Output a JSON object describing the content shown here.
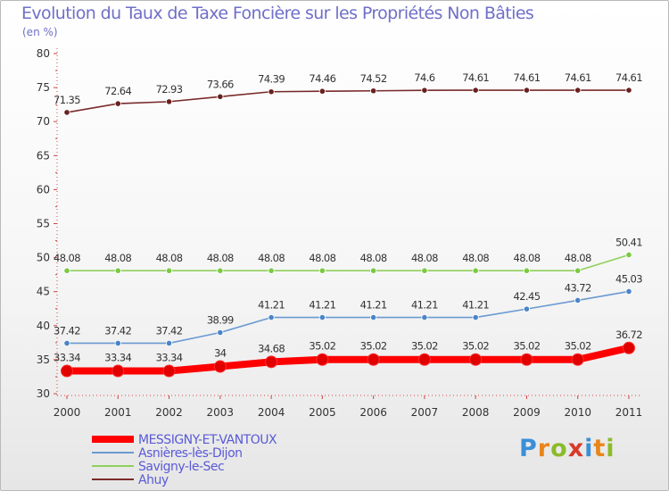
{
  "title": "Evolution du Taux de Taxe Foncière sur les Propriétés Non Bâties",
  "subtitle": "(en %)",
  "logo": {
    "letters": [
      "P",
      "r",
      "o",
      "x",
      "i",
      "t",
      "i"
    ],
    "colors": [
      "#3a8fd8",
      "#e8861a",
      "#8cbb2a",
      "#d83a2a",
      "#3a8fd8",
      "#e8861a",
      "#8cbb2a"
    ]
  },
  "chart_data": {
    "type": "line",
    "title": "Evolution du Taux de Taxe Foncière sur les Propriétés Non Bâties",
    "ylabel": "(en %)",
    "xlabel": "",
    "x": [
      "2000",
      "2001",
      "2002",
      "2003",
      "2004",
      "2005",
      "2006",
      "2007",
      "2008",
      "2009",
      "2010",
      "2011"
    ],
    "ylim": [
      30,
      80
    ],
    "yticks": [
      30,
      35,
      40,
      45,
      50,
      55,
      60,
      65,
      70,
      75,
      80
    ],
    "grid": false,
    "legend_position": "bottom-left",
    "series": [
      {
        "name": "Ahuy",
        "color": "#7a2a2a",
        "marker": "#6a1f1f",
        "values": [
          71.35,
          72.64,
          72.93,
          73.66,
          74.39,
          74.46,
          74.52,
          74.6,
          74.61,
          74.61,
          74.61,
          74.61
        ],
        "labels": [
          "71.35",
          "72.64",
          "72.93",
          "73.66",
          "74.39",
          "74.46",
          "74.52",
          "74.6",
          "74.61",
          "74.61",
          "74.61",
          "74.61"
        ]
      },
      {
        "name": "Savigny-le-Sec",
        "color": "#8fd05a",
        "marker": "#7ac943",
        "values": [
          48.08,
          48.08,
          48.08,
          48.08,
          48.08,
          48.08,
          48.08,
          48.08,
          48.08,
          48.08,
          48.08,
          50.41
        ],
        "labels": [
          "48.08",
          "48.08",
          "48.08",
          "48.08",
          "48.08",
          "48.08",
          "48.08",
          "48.08",
          "48.08",
          "48.08",
          "48.08",
          "50.41"
        ]
      },
      {
        "name": "Asnières-lès-Dijon",
        "color": "#6a9ad2",
        "marker": "#4a84c8",
        "values": [
          37.42,
          37.42,
          37.42,
          38.99,
          41.21,
          41.21,
          41.21,
          41.21,
          41.21,
          42.45,
          43.72,
          45.03
        ],
        "labels": [
          "37.42",
          "37.42",
          "37.42",
          "38.99",
          "41.21",
          "41.21",
          "41.21",
          "41.21",
          "41.21",
          "42.45",
          "43.72",
          "45.03"
        ]
      },
      {
        "name": "MESSIGNY-ET-VANTOUX",
        "color": "#ff0000",
        "marker": "#e00000",
        "values": [
          33.34,
          33.34,
          33.34,
          34,
          34.68,
          35.02,
          35.02,
          35.02,
          35.02,
          35.02,
          35.02,
          36.72
        ],
        "labels": [
          "33.34",
          "33.34",
          "33.34",
          "34",
          "34.68",
          "35.02",
          "35.02",
          "35.02",
          "35.02",
          "35.02",
          "35.02",
          "36.72"
        ]
      }
    ],
    "legend": [
      "MESSIGNY-ET-VANTOUX",
      "Asnières-lès-Dijon",
      "Savigny-le-Sec",
      "Ahuy"
    ]
  }
}
